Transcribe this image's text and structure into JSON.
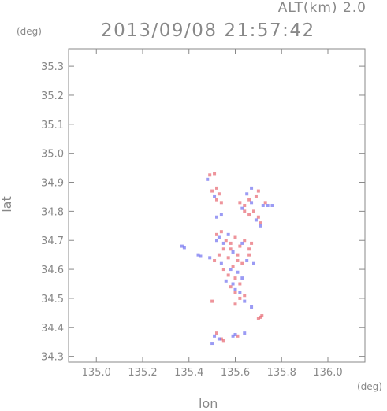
{
  "header": {
    "altitude_label": "ALT(km) 2.0",
    "timestamp": "2013/09/08 21:57:42"
  },
  "chart_data": {
    "type": "scatter",
    "title": "2013/09/08 21:57:42",
    "xlabel": "lon",
    "ylabel": "lat",
    "x_unit": "(deg)",
    "y_unit": "(deg)",
    "xlim": [
      134.88,
      136.16
    ],
    "ylim": [
      34.28,
      35.36
    ],
    "x_ticks": [
      135.0,
      135.2,
      135.4,
      135.6,
      135.8,
      136.0
    ],
    "x_tick_labels": [
      "135.0",
      "135.2",
      "135.4",
      "135.6",
      "135.8",
      "136.0"
    ],
    "y_ticks": [
      34.3,
      34.4,
      34.5,
      34.6,
      34.7,
      34.8,
      34.9,
      35.0,
      35.1,
      35.2,
      35.3
    ],
    "y_tick_labels": [
      "34.3",
      "34.4",
      "34.5",
      "34.6",
      "34.7",
      "34.8",
      "34.9",
      "35.0",
      "35.1",
      "35.2",
      "35.3"
    ],
    "grid": false,
    "colors": {
      "positive": "#e8707a",
      "negative": "#7a7af0",
      "axis": "#888888"
    },
    "series": [
      {
        "color_key": "positive",
        "points": [
          [
            135.49,
            34.925
          ],
          [
            135.51,
            34.93
          ],
          [
            135.52,
            34.88
          ],
          [
            135.5,
            34.87
          ],
          [
            135.53,
            34.86
          ],
          [
            135.52,
            34.84
          ],
          [
            135.54,
            34.83
          ],
          [
            135.62,
            34.83
          ],
          [
            135.64,
            34.82
          ],
          [
            135.66,
            34.84
          ],
          [
            135.69,
            34.85
          ],
          [
            135.7,
            34.87
          ],
          [
            135.68,
            34.8
          ],
          [
            135.7,
            34.78
          ],
          [
            135.71,
            34.76
          ],
          [
            135.66,
            34.79
          ],
          [
            135.64,
            34.8
          ],
          [
            135.73,
            34.83
          ],
          [
            135.52,
            34.72
          ],
          [
            135.54,
            34.73
          ],
          [
            135.56,
            34.7
          ],
          [
            135.58,
            34.69
          ],
          [
            135.6,
            34.71
          ],
          [
            135.62,
            34.68
          ],
          [
            135.64,
            34.7
          ],
          [
            135.66,
            34.67
          ],
          [
            135.67,
            34.69
          ],
          [
            135.55,
            34.67
          ],
          [
            135.53,
            34.65
          ],
          [
            135.57,
            34.64
          ],
          [
            135.61,
            34.65
          ],
          [
            135.63,
            34.62
          ],
          [
            135.59,
            34.61
          ],
          [
            135.55,
            34.6
          ],
          [
            135.57,
            34.58
          ],
          [
            135.6,
            34.57
          ],
          [
            135.62,
            34.55
          ],
          [
            135.58,
            34.54
          ],
          [
            135.6,
            34.52
          ],
          [
            135.62,
            34.5
          ],
          [
            135.64,
            34.51
          ],
          [
            135.5,
            34.49
          ],
          [
            135.6,
            34.48
          ],
          [
            135.51,
            34.63
          ],
          [
            135.58,
            34.67
          ],
          [
            135.61,
            34.63
          ],
          [
            135.66,
            34.65
          ],
          [
            135.7,
            34.43
          ],
          [
            135.71,
            34.435
          ],
          [
            135.715,
            34.44
          ],
          [
            135.52,
            34.38
          ],
          [
            135.54,
            34.36
          ],
          [
            135.55,
            34.355
          ],
          [
            135.61,
            34.37
          ]
        ]
      },
      {
        "color_key": "negative",
        "points": [
          [
            135.48,
            34.91
          ],
          [
            135.52,
            34.78
          ],
          [
            135.54,
            34.79
          ],
          [
            135.51,
            34.85
          ],
          [
            135.63,
            34.81
          ],
          [
            135.67,
            34.83
          ],
          [
            135.72,
            34.82
          ],
          [
            135.74,
            34.82
          ],
          [
            135.76,
            34.82
          ],
          [
            135.69,
            34.77
          ],
          [
            135.71,
            34.75
          ],
          [
            135.65,
            34.86
          ],
          [
            135.67,
            34.88
          ],
          [
            135.53,
            34.71
          ],
          [
            135.55,
            34.69
          ],
          [
            135.57,
            34.72
          ],
          [
            135.59,
            34.66
          ],
          [
            135.63,
            34.69
          ],
          [
            135.65,
            34.63
          ],
          [
            135.68,
            34.62
          ],
          [
            135.54,
            34.62
          ],
          [
            135.56,
            34.56
          ],
          [
            135.58,
            34.6
          ],
          [
            135.61,
            34.59
          ],
          [
            135.63,
            34.57
          ],
          [
            135.59,
            34.55
          ],
          [
            135.6,
            34.53
          ],
          [
            135.62,
            34.52
          ],
          [
            135.64,
            34.49
          ],
          [
            135.67,
            34.47
          ],
          [
            135.52,
            34.7
          ],
          [
            135.49,
            34.64
          ],
          [
            135.37,
            34.68
          ],
          [
            135.38,
            34.675
          ],
          [
            135.44,
            34.65
          ],
          [
            135.45,
            34.645
          ],
          [
            135.5,
            34.345
          ],
          [
            135.53,
            34.36
          ],
          [
            135.59,
            34.37
          ],
          [
            135.6,
            34.375
          ],
          [
            135.64,
            34.38
          ],
          [
            135.51,
            34.37
          ]
        ]
      }
    ]
  }
}
